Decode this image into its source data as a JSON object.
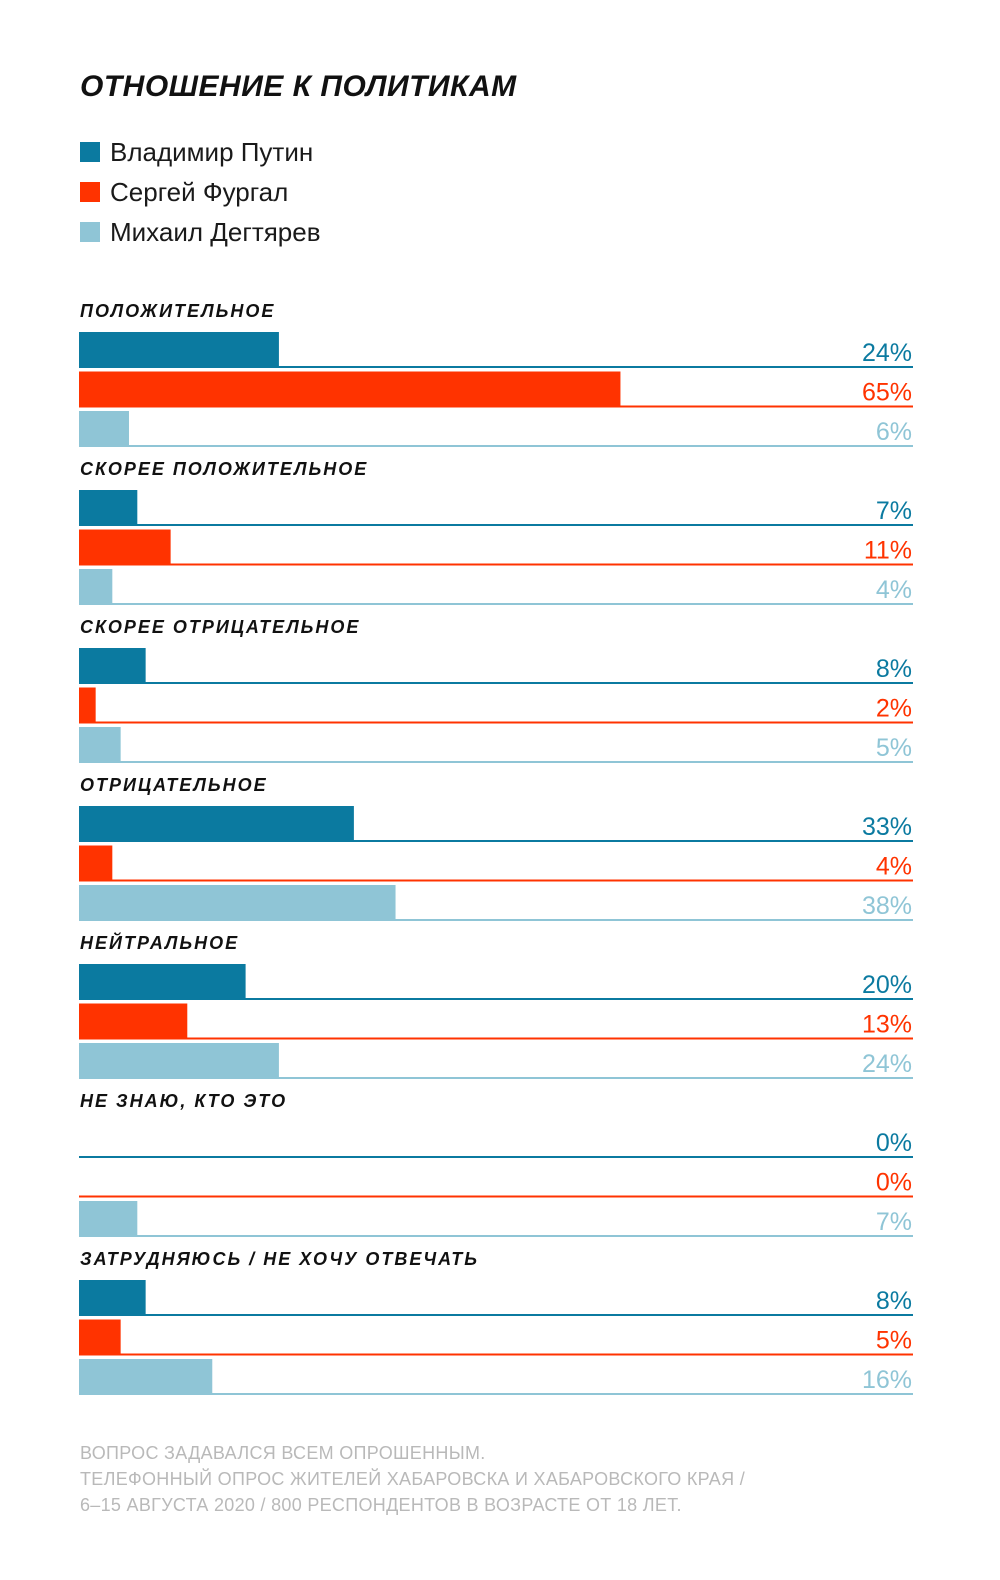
{
  "chart_data": {
    "type": "bar",
    "orientation": "horizontal",
    "title": "ОТНОШЕНИЕ К ПОЛИТИКАМ",
    "categories": [
      "ПОЛОЖИТЕЛЬНОЕ",
      "СКОРЕЕ ПОЛОЖИТЕЛЬНОЕ",
      "СКОРЕЕ ОТРИЦАТЕЛЬНОЕ",
      "ОТРИЦАТЕЛЬНОЕ",
      "НЕЙТРАЛЬНОЕ",
      "НЕ ЗНАЮ, КТО ЭТО",
      "ЗАТРУДНЯЮСЬ / НЕ ХОЧУ ОТВЕЧАТЬ"
    ],
    "series": [
      {
        "name": "Владимир Путин",
        "color": "#0b7aa0",
        "values": [
          24,
          7,
          8,
          33,
          20,
          0,
          8
        ]
      },
      {
        "name": "Сергей Фургал",
        "color": "#ff3300",
        "values": [
          65,
          11,
          2,
          4,
          13,
          0,
          5
        ]
      },
      {
        "name": "Михаил Дегтярев",
        "color": "#8fc5d6",
        "values": [
          6,
          4,
          5,
          38,
          24,
          7,
          16
        ]
      }
    ],
    "value_suffix": "%",
    "xlim": [
      0,
      100
    ],
    "grid": false,
    "legend": "top-left"
  },
  "footnote": [
    "ВОПРОС ЗАДАВАЛСЯ ВСЕМ ОПРОШЕННЫМ.",
    "ТЕЛЕФОННЫЙ ОПРОС ЖИТЕЛЕЙ ХАБАРОВСКА И ХАБАРОВСКОГО КРАЯ /",
    "6–15 АВГУСТА 2020 / 800 РЕСПОНДЕНТОВ В ВОЗРАСТЕ ОТ 18 ЛЕТ."
  ]
}
